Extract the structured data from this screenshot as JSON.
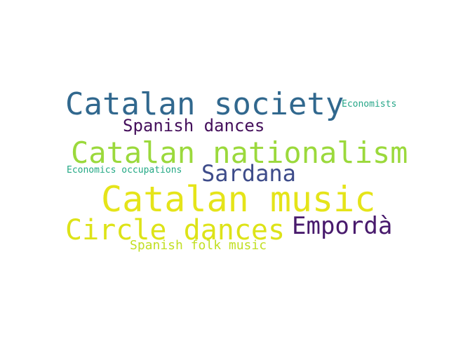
{
  "cloud": {
    "words": [
      {
        "text": "Catalan society",
        "color": "#31688e"
      },
      {
        "text": "Economists",
        "color": "#26a688"
      },
      {
        "text": "Spanish dances",
        "color": "#440f5b"
      },
      {
        "text": "Catalan nationalism",
        "color": "#9bd93c"
      },
      {
        "text": "Economics occupations",
        "color": "#22a884"
      },
      {
        "text": "Sardana",
        "color": "#3e4c8a"
      },
      {
        "text": "Catalan music",
        "color": "#e5e419"
      },
      {
        "text": "Empordà",
        "color": "#481a6c"
      },
      {
        "text": "Circle dances",
        "color": "#dde318"
      },
      {
        "text": "Spanish folk music",
        "color": "#c2df23"
      }
    ]
  }
}
